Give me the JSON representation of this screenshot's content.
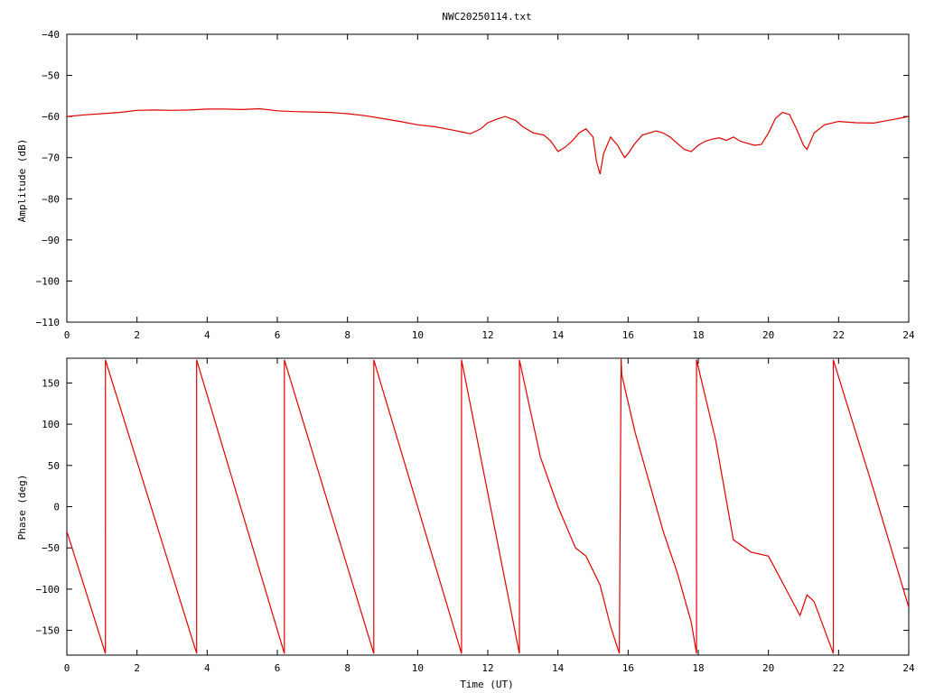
{
  "title": "NWC20250114.txt",
  "colors": {
    "trace": "#e00000",
    "axis": "#000000",
    "background": "#ffffff"
  },
  "chart_data": [
    {
      "type": "line",
      "panel": "top",
      "title": "NWC20250114.txt",
      "xlabel": "",
      "ylabel": "Amplitude (dB)",
      "xlim": [
        0,
        24
      ],
      "ylim": [
        -110,
        -40
      ],
      "x_ticks": [
        0,
        2,
        4,
        6,
        8,
        10,
        12,
        14,
        16,
        18,
        20,
        22,
        24
      ],
      "y_ticks": [
        -40,
        -50,
        -60,
        -70,
        -80,
        -90,
        -100,
        -110
      ],
      "x_tick_labels": [
        "0",
        "2",
        "4",
        "6",
        "8",
        "10",
        "12",
        "14",
        "16",
        "18",
        "20",
        "22",
        "24"
      ],
      "y_tick_labels": [
        "−40",
        "−50",
        "−60",
        "−70",
        "−80",
        "−90",
        "−100",
        "−110"
      ],
      "grid": false,
      "series": [
        {
          "x": [
            0,
            0.5,
            1,
            1.5,
            2,
            2.5,
            3,
            3.5,
            4,
            4.5,
            5,
            5.5,
            6,
            6.5,
            7,
            7.5,
            8,
            8.5,
            9,
            9.5,
            10,
            10.5,
            11,
            11.3,
            11.5,
            11.8,
            12,
            12.3,
            12.5,
            12.8,
            13,
            13.3,
            13.6,
            13.8,
            14,
            14.2,
            14.4,
            14.6,
            14.8,
            15,
            15.1,
            15.2,
            15.3,
            15.5,
            15.7,
            15.9,
            16,
            16.2,
            16.4,
            16.6,
            16.8,
            17,
            17.2,
            17.4,
            17.6,
            17.8,
            18,
            18.2,
            18.4,
            18.6,
            18.8,
            19,
            19.2,
            19.4,
            19.6,
            19.8,
            20,
            20.2,
            20.4,
            20.6,
            20.8,
            21,
            21.1,
            21.3,
            21.6,
            22,
            22.5,
            23,
            23.5,
            24
          ],
          "y": [
            -60,
            -59.6,
            -59.3,
            -59,
            -58.5,
            -58.4,
            -58.5,
            -58.4,
            -58.2,
            -58.2,
            -58.3,
            -58.1,
            -58.6,
            -58.8,
            -58.9,
            -59,
            -59.3,
            -59.8,
            -60.5,
            -61.2,
            -62,
            -62.5,
            -63.3,
            -63.8,
            -64.2,
            -63,
            -61.5,
            -60.5,
            -60,
            -61,
            -62.5,
            -64,
            -64.5,
            -66,
            -68.5,
            -67.5,
            -66,
            -64,
            -63,
            -65,
            -71,
            -74,
            -69,
            -65,
            -67,
            -70,
            -69,
            -66.5,
            -64.5,
            -64,
            -63.5,
            -64,
            -65,
            -66.5,
            -68,
            -68.5,
            -67,
            -66,
            -65.5,
            -65.2,
            -65.8,
            -65,
            -66,
            -66.5,
            -67,
            -66.8,
            -64,
            -60.5,
            -59,
            -59.5,
            -63,
            -67,
            -68,
            -64,
            -62,
            -61.2,
            -61.5,
            -61.6,
            -60.8,
            -60
          ]
        }
      ]
    },
    {
      "type": "line",
      "panel": "bottom",
      "title": "",
      "xlabel": "Time (UT)",
      "ylabel": "Phase (deg)",
      "xlim": [
        0,
        24
      ],
      "ylim": [
        -180,
        180
      ],
      "x_ticks": [
        0,
        2,
        4,
        6,
        8,
        10,
        12,
        14,
        16,
        18,
        20,
        22,
        24
      ],
      "y_ticks": [
        150,
        100,
        50,
        0,
        -50,
        -100,
        -150
      ],
      "x_tick_labels": [
        "0",
        "2",
        "4",
        "6",
        "8",
        "10",
        "12",
        "14",
        "16",
        "18",
        "20",
        "22",
        "24"
      ],
      "y_tick_labels": [
        "150",
        "100",
        "50",
        "0",
        "−50",
        "−100",
        "−150"
      ],
      "grid": false,
      "series": [
        {
          "x": [
            0,
            1.1,
            1.1,
            3.7,
            3.7,
            6.2,
            6.2,
            8.75,
            8.75,
            11.25,
            11.25,
            12.9,
            12.9,
            13.5,
            14,
            14.5,
            14.8,
            15.2,
            15.5,
            15.75,
            15.8,
            15.82,
            16.2,
            16.6,
            17,
            17.4,
            17.8,
            17.95,
            17.95,
            18.5,
            19,
            19.5,
            20,
            20.5,
            20.9,
            21.1,
            21.3,
            21.85,
            21.85,
            23,
            24
          ],
          "y": [
            -30,
            -178,
            178,
            -178,
            178,
            -178,
            178,
            -178,
            178,
            -178,
            178,
            -178,
            178,
            60,
            0,
            -50,
            -60,
            -95,
            -145,
            -178,
            180,
            160,
            90,
            30,
            -30,
            -80,
            -140,
            -178,
            178,
            80,
            -40,
            -55,
            -60,
            -100,
            -132,
            -107,
            -115,
            -178,
            178,
            20,
            -122
          ]
        }
      ]
    }
  ]
}
